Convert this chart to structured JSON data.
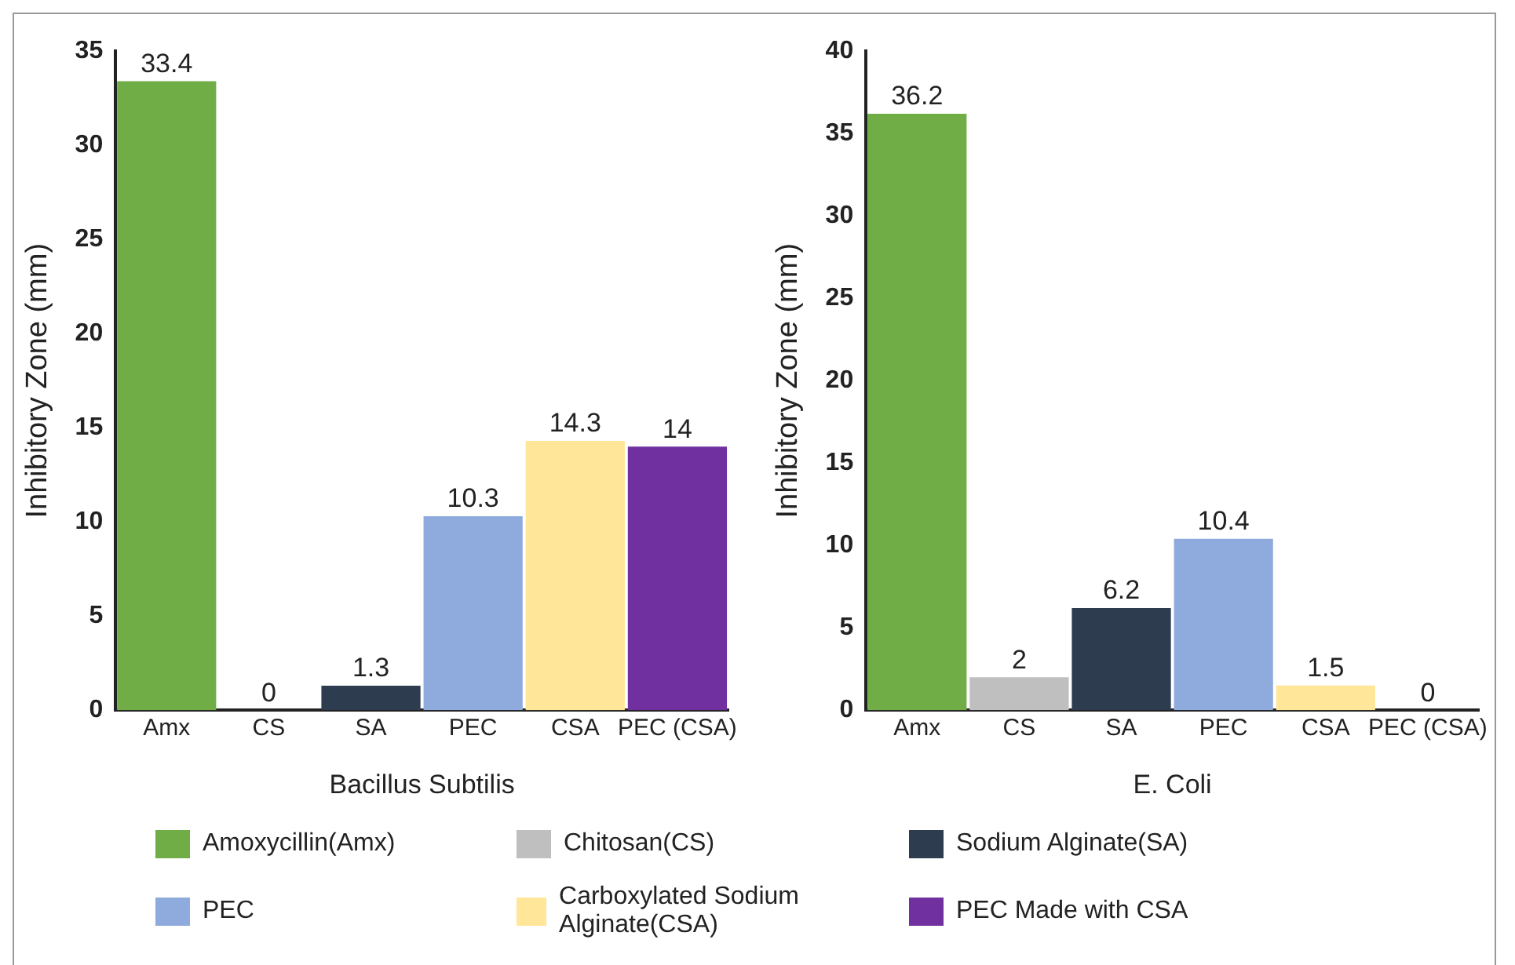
{
  "chart_data": [
    {
      "type": "bar",
      "xlabel": "Bacillus Subtilis",
      "ylabel": "Inhibitory Zone (mm)",
      "categories": [
        "Amx",
        "CS",
        "SA",
        "PEC",
        "CSA",
        "PEC (CSA)"
      ],
      "series": [
        {
          "name": "Amoxycillin(Amx)",
          "color": "#70ad47",
          "values": [
            33.4,
            null,
            null,
            null,
            null,
            null
          ]
        },
        {
          "name": "Chitosan(CS)",
          "color": "#bfbfbf",
          "values": [
            null,
            0,
            null,
            null,
            null,
            null
          ]
        },
        {
          "name": "Sodium Alginate(SA)",
          "color": "#2e3c4f",
          "values": [
            null,
            null,
            1.3,
            null,
            null,
            null
          ]
        },
        {
          "name": "PEC",
          "color": "#8faadc",
          "values": [
            null,
            null,
            null,
            10.3,
            null,
            null
          ]
        },
        {
          "name": "Carboxylated Sodium Alginate(CSA)",
          "color": "#ffe699",
          "values": [
            null,
            null,
            null,
            null,
            14.3,
            null
          ]
        },
        {
          "name": "PEC Made with CSA",
          "color": "#7030a0",
          "values": [
            null,
            null,
            null,
            null,
            null,
            14
          ]
        }
      ],
      "ylim": [
        0,
        35
      ],
      "yticks": [
        0,
        5,
        10,
        15,
        20,
        25,
        30,
        35
      ],
      "grid": false,
      "data_labels": true,
      "legend": "bottom"
    },
    {
      "type": "bar",
      "xlabel": "E. Coli",
      "ylabel": "Inhibitory Zone (mm)",
      "categories": [
        "Amx",
        "CS",
        "SA",
        "PEC",
        "CSA",
        "PEC (CSA)"
      ],
      "series": [
        {
          "color": "#70ad47",
          "values": [
            36.2,
            null,
            null,
            null,
            null,
            null
          ]
        },
        {
          "color": "#bfbfbf",
          "values": [
            null,
            2,
            null,
            null,
            null,
            null
          ]
        },
        {
          "color": "#2e3c4f",
          "values": [
            null,
            null,
            6.2,
            null,
            null,
            null
          ]
        },
        {
          "color": "#8faadc",
          "values": [
            null,
            null,
            null,
            10.4,
            null,
            null
          ]
        },
        {
          "color": "#ffe699",
          "values": [
            null,
            null,
            null,
            null,
            1.5,
            null
          ]
        },
        {
          "color": "#7030a0",
          "values": [
            null,
            null,
            null,
            null,
            null,
            0
          ]
        }
      ],
      "ylim": [
        0,
        40
      ],
      "yticks": [
        0,
        5,
        10,
        15,
        20,
        25,
        30,
        35,
        40
      ],
      "grid": false,
      "data_labels": true
    }
  ]
}
